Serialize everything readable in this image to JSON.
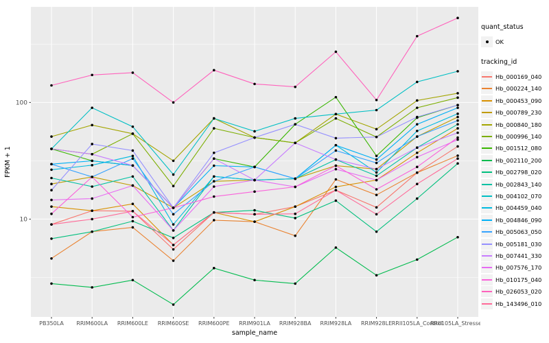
{
  "axes": {
    "x_title": "sample_name",
    "y_title": "FPKM + 1",
    "y_tick_labels": [
      "100",
      "10"
    ],
    "y_tick_values": [
      100,
      10
    ],
    "y_minor_values": [
      3.162,
      31.62,
      316.2
    ],
    "ylim": [
      1.45,
      660
    ]
  },
  "legend": {
    "quant_status_title": "quant_status",
    "ok_label": "OK",
    "tracking_title": "tracking_id"
  },
  "colors": {
    "panel_bg": "#EBEBEB",
    "grid": "#FFFFFF",
    "marker": "#000000",
    "axis_text": "#4D4D4D",
    "tick_mark": "#333333",
    "legend_key_bg": "#F2F2F2"
  },
  "chart_data": {
    "type": "line",
    "title": "",
    "xlabel": "sample_name",
    "ylabel": "FPKM + 1",
    "y_scale": "log10",
    "ylim": [
      1.45,
      660
    ],
    "grid": "on",
    "legend_position": "right",
    "point_shape": "black point (quant_status = OK)",
    "categories": [
      "PB350LA",
      "RRIM600LA",
      "RRIM600LE",
      "RRIM600SE",
      "RRIM600PE",
      "RRIM901LA",
      "RRIM928BA",
      "RRIM928LA",
      "RRIM928LE",
      "RRII105LA_Control",
      "RRII105LA_Stressed"
    ],
    "series": [
      {
        "name": "Hb_000169_040",
        "color": "#F8766D",
        "values": [
          9.0,
          11.8,
          11.7,
          5.5,
          11.4,
          11.0,
          12.8,
          17.7,
          12.6,
          25,
          42
        ]
      },
      {
        "name": "Hb_000224_140",
        "color": "#EA8331",
        "values": [
          4.6,
          7.8,
          8.5,
          4.4,
          9.8,
          9.5,
          7.2,
          21.9,
          16.1,
          25,
          35
        ]
      },
      {
        "name": "Hb_000453_090",
        "color": "#D89000",
        "values": [
          12.8,
          11.8,
          13.5,
          6.0,
          11.4,
          9.5,
          12.8,
          18.9,
          21.6,
          37,
          60
        ]
      },
      {
        "name": "Hb_000789_230",
        "color": "#C09B00",
        "values": [
          20,
          23,
          19.4,
          12.5,
          21.1,
          21.6,
          22.2,
          28.7,
          26.8,
          51,
          75
        ]
      },
      {
        "name": "Hb_000840_180",
        "color": "#A3A500",
        "values": [
          51,
          64,
          54,
          31.6,
          73,
          50,
          45,
          79.5,
          59,
          104,
          120
        ]
      },
      {
        "name": "Hb_000996_140",
        "color": "#7CAE00",
        "values": [
          40,
          36,
          54,
          19.2,
          60,
          50,
          45,
          73,
          50.6,
          90,
          110
        ]
      },
      {
        "name": "Hb_001512_080",
        "color": "#39B600",
        "values": [
          40,
          31.6,
          28.8,
          12.5,
          33,
          28,
          65,
          111,
          34.8,
          74,
          95
        ]
      },
      {
        "name": "Hb_002110_200",
        "color": "#00BB4E",
        "values": [
          2.8,
          2.6,
          3.0,
          1.85,
          3.8,
          3.0,
          2.8,
          5.7,
          3.3,
          4.5,
          7.0
        ]
      },
      {
        "name": "Hb_002798_020",
        "color": "#00BF7D",
        "values": [
          6.8,
          7.8,
          9.6,
          6.9,
          11.4,
          11.9,
          10.2,
          14.4,
          7.8,
          15,
          30
        ]
      },
      {
        "name": "Hb_002843_140",
        "color": "#00C1A3",
        "values": [
          22.5,
          19,
          23.2,
          8.0,
          23.2,
          21.6,
          22.2,
          32.4,
          23.5,
          41,
          65
        ]
      },
      {
        "name": "Hb_004102_070",
        "color": "#00BFC4",
        "values": [
          40,
          90,
          62,
          24.1,
          73,
          56.6,
          73,
          79.5,
          86,
          150,
          185
        ]
      },
      {
        "name": "Hb_004459_040",
        "color": "#00BAE0",
        "values": [
          26.5,
          29,
          34.8,
          9.0,
          23.2,
          21.6,
          22.2,
          43,
          25.1,
          57,
          80
        ]
      },
      {
        "name": "Hb_004846_090",
        "color": "#00B0F6",
        "values": [
          29.6,
          31.6,
          28.8,
          12.5,
          28.7,
          28,
          22.2,
          43,
          32.4,
          65,
          90
        ]
      },
      {
        "name": "Hb_005063_050",
        "color": "#35A2FF",
        "values": [
          29.6,
          23,
          33,
          11,
          21.1,
          28,
          22.2,
          38.7,
          30.3,
          51,
          70
        ]
      },
      {
        "name": "Hb_005181_030",
        "color": "#9590FF",
        "values": [
          17.7,
          44,
          38.7,
          12.5,
          37,
          50,
          65,
          49.4,
          50.6,
          75,
          95
        ]
      },
      {
        "name": "Hb_007441_330",
        "color": "#C77CFF",
        "values": [
          40,
          36,
          28.8,
          12.5,
          33,
          21.6,
          45,
          32.4,
          26.8,
          41,
          55
        ]
      },
      {
        "name": "Hb_007576_170",
        "color": "#E76BF3",
        "values": [
          14.6,
          15,
          19.4,
          8.0,
          19,
          21.6,
          18.9,
          26.8,
          21.6,
          34,
          48
        ]
      },
      {
        "name": "Hb_010175_040",
        "color": "#FA62DB",
        "values": [
          11.1,
          23,
          10.4,
          12.5,
          15.6,
          17.2,
          18.9,
          28.7,
          18,
          28,
          50
        ]
      },
      {
        "name": "Hb_026053_020",
        "color": "#FF62BC",
        "values": [
          140,
          172,
          180,
          100,
          189,
          144,
          136,
          272,
          105,
          370,
          530
        ]
      },
      {
        "name": "Hb_143496_010",
        "color": "#FF6A98",
        "values": [
          9.0,
          10,
          11.7,
          6.0,
          11.4,
          11.0,
          11.1,
          17.7,
          11.0,
          20,
          33
        ]
      }
    ]
  }
}
